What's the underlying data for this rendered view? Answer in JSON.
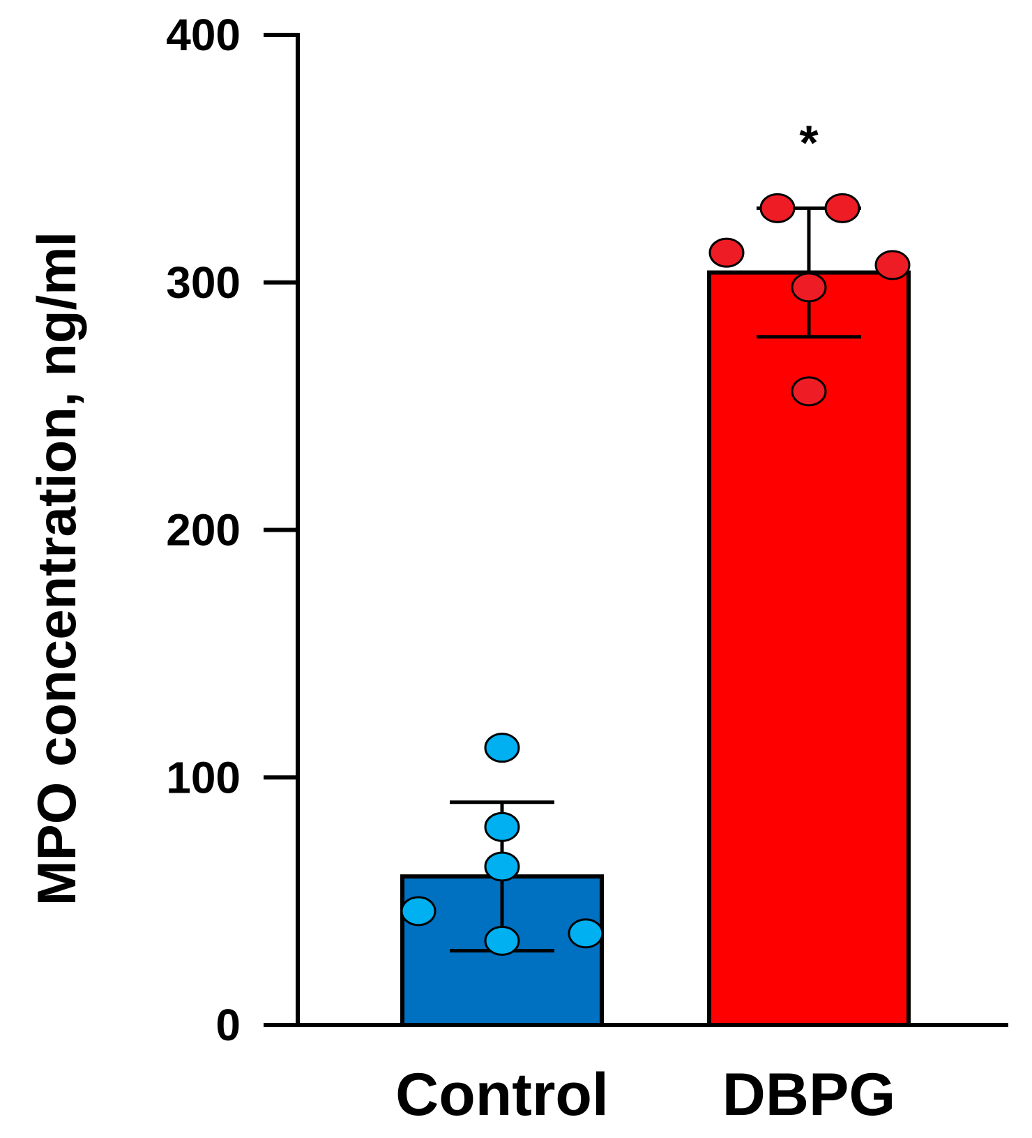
{
  "chart_data": {
    "type": "bar",
    "title": "",
    "xlabel": "",
    "ylabel": "MPO concentration, ng/ml",
    "ylim": [
      0,
      400
    ],
    "yticks": [
      "0",
      "100",
      "200",
      "300",
      "400"
    ],
    "categories": [
      "Control",
      "DBPG"
    ],
    "values": [
      60,
      304
    ],
    "error": [
      30,
      26
    ],
    "bar_colors": [
      "#0070c0",
      "#ff0000"
    ],
    "point_colors": [
      "#00b0f0",
      "#ee1c24"
    ],
    "points": [
      [
        112,
        80,
        64,
        46,
        34,
        37
      ],
      [
        330,
        330,
        312,
        307,
        298,
        256
      ]
    ],
    "significance": [
      "",
      "*"
    ]
  }
}
